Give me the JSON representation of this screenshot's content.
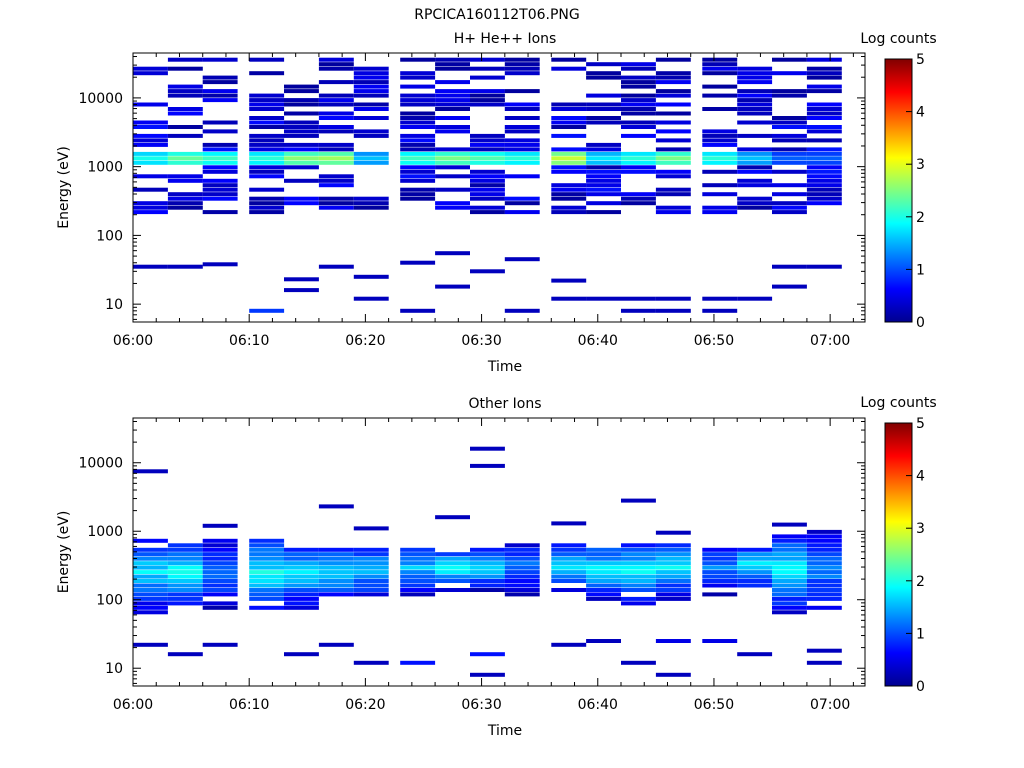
{
  "figure": {
    "title": "RPCICA160112T06.PNG"
  },
  "chart_data": [
    {
      "type": "heatmap",
      "title": "H+ He++ Ions",
      "xlabel": "Time",
      "ylabel": "Energy (eV)",
      "x_ticks": [
        "06:00",
        "06:10",
        "06:20",
        "06:30",
        "06:40",
        "06:50",
        "07:00"
      ],
      "y_ticks": [
        "10",
        "100",
        "1000",
        "10000"
      ],
      "y_scale": "log",
      "ylim": [
        5.5,
        45000
      ],
      "xlim": [
        "06:00",
        "07:03"
      ],
      "colorbar": {
        "label": "Log counts",
        "ticks": [
          "0",
          "1",
          "2",
          "3",
          "4",
          "5"
        ],
        "range": [
          0,
          5
        ],
        "colormap": "jet"
      },
      "time_bins": [
        "06:00",
        "06:03",
        "06:06",
        "06:10",
        "06:13",
        "06:16",
        "06:19",
        "06:23",
        "06:26",
        "06:29",
        "06:32",
        "06:36",
        "06:39",
        "06:42",
        "06:45",
        "06:49",
        "06:52",
        "06:55",
        "06:58"
      ],
      "dense_energy_range": [
        200,
        40000
      ],
      "peak_energy": 1300,
      "peak_log_counts": [
        2.0,
        2.4,
        2.2,
        2.1,
        2.6,
        2.7,
        1.6,
        2.2,
        2.5,
        2.3,
        2.1,
        2.9,
        1.8,
        2.1,
        2.5,
        2.1,
        1.6,
        1.1,
        1.1
      ],
      "low_energy_cells": [
        {
          "t": "06:00",
          "e": 35,
          "v": 0.3
        },
        {
          "t": "06:03",
          "e": 35,
          "v": 0.3
        },
        {
          "t": "06:06",
          "e": 38,
          "v": 0.3
        },
        {
          "t": "06:10",
          "e": 8,
          "v": 0.9
        },
        {
          "t": "06:13",
          "e": 16,
          "v": 0.3
        },
        {
          "t": "06:13",
          "e": 23,
          "v": 0.3
        },
        {
          "t": "06:16",
          "e": 35,
          "v": 0.3
        },
        {
          "t": "06:19",
          "e": 12,
          "v": 0.3
        },
        {
          "t": "06:19",
          "e": 25,
          "v": 0.3
        },
        {
          "t": "06:23",
          "e": 8,
          "v": 0.3
        },
        {
          "t": "06:23",
          "e": 40,
          "v": 0.3
        },
        {
          "t": "06:26",
          "e": 18,
          "v": 0.3
        },
        {
          "t": "06:26",
          "e": 55,
          "v": 0.3
        },
        {
          "t": "06:29",
          "e": 30,
          "v": 0.3
        },
        {
          "t": "06:32",
          "e": 8,
          "v": 0.3
        },
        {
          "t": "06:32",
          "e": 45,
          "v": 0.3
        },
        {
          "t": "06:36",
          "e": 12,
          "v": 0.3
        },
        {
          "t": "06:36",
          "e": 22,
          "v": 0.3
        },
        {
          "t": "06:39",
          "e": 12,
          "v": 0.3
        },
        {
          "t": "06:42",
          "e": 8,
          "v": 0.3
        },
        {
          "t": "06:42",
          "e": 12,
          "v": 0.3
        },
        {
          "t": "06:45",
          "e": 8,
          "v": 0.3
        },
        {
          "t": "06:45",
          "e": 12,
          "v": 0.3
        },
        {
          "t": "06:49",
          "e": 8,
          "v": 0.3
        },
        {
          "t": "06:49",
          "e": 12,
          "v": 0.3
        },
        {
          "t": "06:52",
          "e": 12,
          "v": 0.3
        },
        {
          "t": "06:55",
          "e": 35,
          "v": 0.3
        },
        {
          "t": "06:55",
          "e": 18,
          "v": 0.3
        },
        {
          "t": "06:58",
          "e": 35,
          "v": 0.3
        }
      ]
    },
    {
      "type": "heatmap",
      "title": "Other Ions",
      "xlabel": "Time",
      "ylabel": "Energy (eV)",
      "x_ticks": [
        "06:00",
        "06:10",
        "06:20",
        "06:30",
        "06:40",
        "06:50",
        "07:00"
      ],
      "y_ticks": [
        "10",
        "100",
        "1000",
        "10000"
      ],
      "y_scale": "log",
      "ylim": [
        5.5,
        45000
      ],
      "xlim": [
        "06:00",
        "07:03"
      ],
      "colorbar": {
        "label": "Log counts",
        "ticks": [
          "0",
          "1",
          "2",
          "3",
          "4",
          "5"
        ],
        "range": [
          0,
          5
        ],
        "colormap": "jet"
      },
      "time_bins": [
        "06:00",
        "06:03",
        "06:06",
        "06:10",
        "06:13",
        "06:16",
        "06:19",
        "06:23",
        "06:26",
        "06:29",
        "06:32",
        "06:36",
        "06:39",
        "06:42",
        "06:45",
        "06:49",
        "06:52",
        "06:55",
        "06:58"
      ],
      "band_low_eV": [
        65,
        70,
        70,
        60,
        70,
        80,
        90,
        110,
        120,
        130,
        110,
        120,
        90,
        80,
        100,
        110,
        130,
        60,
        60
      ],
      "band_high_eV": [
        800,
        700,
        750,
        800,
        700,
        700,
        650,
        600,
        550,
        550,
        700,
        650,
        700,
        750,
        700,
        600,
        600,
        900,
        1000
      ],
      "peak_log_counts": [
        1.8,
        2.0,
        1.3,
        1.9,
        1.7,
        1.7,
        1.6,
        1.6,
        1.9,
        1.8,
        1.2,
        1.8,
        1.8,
        1.9,
        1.9,
        1.3,
        1.9,
        1.9,
        1.3
      ],
      "sparse_cells": [
        {
          "t": "06:00",
          "e": 7500,
          "v": 0.3
        },
        {
          "t": "06:06",
          "e": 1200,
          "v": 0.3
        },
        {
          "t": "06:16",
          "e": 2300,
          "v": 0.3
        },
        {
          "t": "06:19",
          "e": 1100,
          "v": 0.3
        },
        {
          "t": "06:26",
          "e": 1600,
          "v": 0.3
        },
        {
          "t": "06:29",
          "e": 16000,
          "v": 0.3
        },
        {
          "t": "06:29",
          "e": 9000,
          "v": 0.3
        },
        {
          "t": "06:36",
          "e": 1300,
          "v": 0.3
        },
        {
          "t": "06:42",
          "e": 2800,
          "v": 0.3
        },
        {
          "t": "06:45",
          "e": 950,
          "v": 0.3
        },
        {
          "t": "06:55",
          "e": 1250,
          "v": 0.3
        },
        {
          "t": "06:00",
          "e": 22,
          "v": 0.3
        },
        {
          "t": "06:03",
          "e": 16,
          "v": 0.3
        },
        {
          "t": "06:06",
          "e": 22,
          "v": 0.3
        },
        {
          "t": "06:13",
          "e": 16,
          "v": 0.3
        },
        {
          "t": "06:16",
          "e": 22,
          "v": 0.3
        },
        {
          "t": "06:19",
          "e": 12,
          "v": 0.3
        },
        {
          "t": "06:23",
          "e": 12,
          "v": 0.7
        },
        {
          "t": "06:29",
          "e": 8,
          "v": 0.3
        },
        {
          "t": "06:29",
          "e": 16,
          "v": 0.7
        },
        {
          "t": "06:36",
          "e": 22,
          "v": 0.3
        },
        {
          "t": "06:39",
          "e": 25,
          "v": 0.3
        },
        {
          "t": "06:42",
          "e": 12,
          "v": 0.3
        },
        {
          "t": "06:45",
          "e": 8,
          "v": 0.3
        },
        {
          "t": "06:45",
          "e": 25,
          "v": 0.5
        },
        {
          "t": "06:49",
          "e": 25,
          "v": 0.5
        },
        {
          "t": "06:52",
          "e": 16,
          "v": 0.3
        },
        {
          "t": "06:58",
          "e": 12,
          "v": 0.3
        },
        {
          "t": "06:58",
          "e": 18,
          "v": 0.3
        }
      ]
    }
  ]
}
